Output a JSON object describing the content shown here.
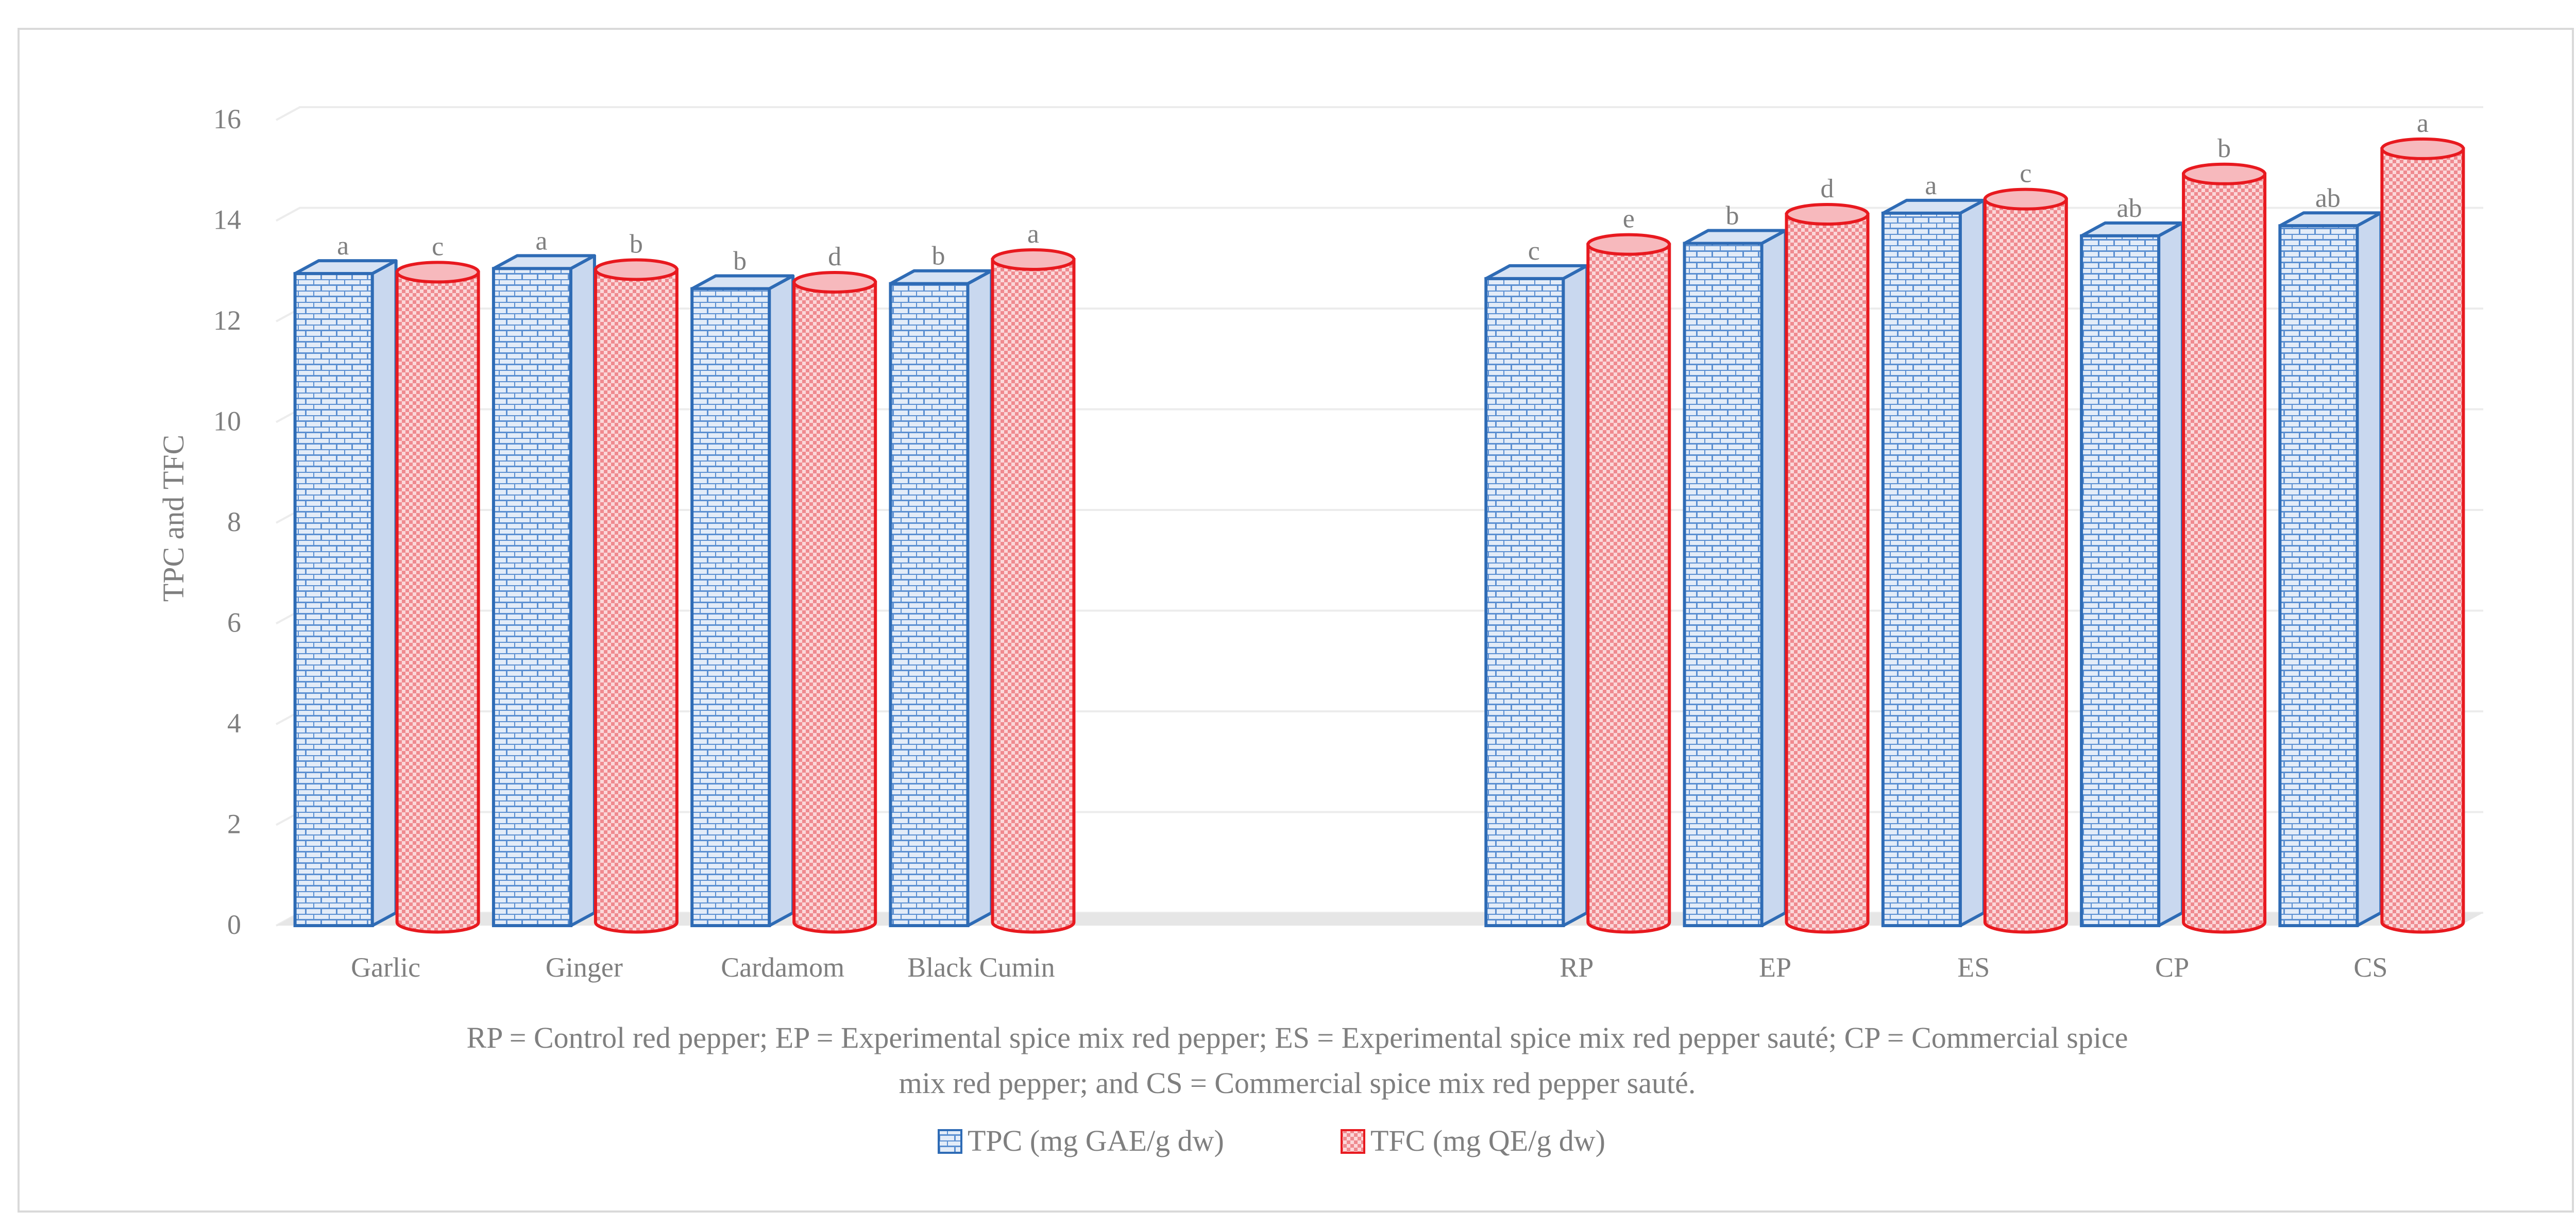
{
  "chart_data": {
    "type": "bar",
    "ylabel": "TPC and TFC",
    "ylim": [
      0,
      16
    ],
    "yticks": [
      0,
      2,
      4,
      6,
      8,
      10,
      12,
      14,
      16
    ],
    "grid": true,
    "categories": [
      "Garlic",
      "Ginger",
      "Cardamom",
      "Black Cumin",
      "",
      "",
      "RP",
      "EP",
      "ES",
      "CP",
      "CS"
    ],
    "series": [
      {
        "name": "TPC (mg GAE/g dw)",
        "color": "#2e6bb5",
        "fill": "#e3ecf8",
        "shape": "box",
        "values": [
          12.95,
          13.05,
          12.65,
          12.75,
          null,
          null,
          12.85,
          13.55,
          14.15,
          13.7,
          13.9
        ],
        "labels": [
          "a",
          "a",
          "b",
          "b",
          "",
          "",
          "c",
          "b",
          "a",
          "ab",
          "ab"
        ]
      },
      {
        "name": "TFC (mg QE/g dw)",
        "color": "#e8191f",
        "fill": "#fbd7d9",
        "shape": "cylinder",
        "values": [
          12.85,
          12.9,
          12.65,
          13.1,
          null,
          null,
          13.4,
          14.0,
          14.3,
          14.8,
          15.3
        ],
        "labels": [
          "c",
          "b",
          "d",
          "a",
          "",
          "",
          "e",
          "d",
          "c",
          "b",
          "a"
        ]
      }
    ],
    "note": [
      "RP = Control red pepper; EP = Experimental spice mix red pepper; ES = Experimental spice mix red pepper sauté; CP = Commercial spice",
      "mix red pepper; and CS = Commercial spice mix red pepper sauté."
    ],
    "legend_position": "bottom"
  }
}
